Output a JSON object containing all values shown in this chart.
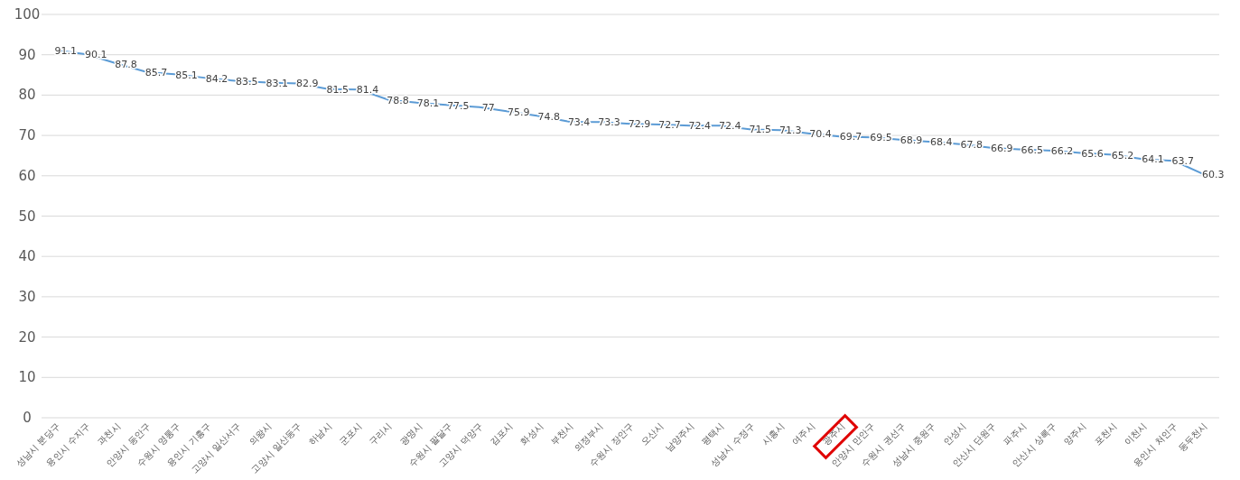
{
  "chart_data": {
    "type": "line",
    "categories": [
      "성남시 분당구",
      "용인시 수지구",
      "과천시",
      "안양시 동안구",
      "수원시 영통구",
      "용인시 기흥구",
      "고양시 일산서구",
      "의왕시",
      "고양시 일산동구",
      "하남시",
      "군포시",
      "구리시",
      "광명시",
      "수원시 팔달구",
      "고양시 덕양구",
      "김포시",
      "화성시",
      "부천시",
      "의정부시",
      "수원시 장안구",
      "오산시",
      "남양주시",
      "평택시",
      "성남시 수정구",
      "시흥시",
      "여주시",
      "광주시",
      "안양시 만안구",
      "수원시 권선구",
      "성남시 중원구",
      "안성시",
      "안산시 단원구",
      "파주시",
      "안산시 상록구",
      "양주시",
      "포천시",
      "이천시",
      "용인시 처인구",
      "동두천시"
    ],
    "values": [
      91.1,
      90.1,
      87.8,
      85.7,
      85.1,
      84.2,
      83.5,
      83.1,
      82.9,
      81.5,
      81.4,
      78.8,
      78.1,
      77.5,
      77,
      75.9,
      74.8,
      73.4,
      73.3,
      72.9,
      72.7,
      72.4,
      72.4,
      71.5,
      71.3,
      70.4,
      69.7,
      69.5,
      68.9,
      68.4,
      67.8,
      66.9,
      66.5,
      66.2,
      65.6,
      65.2,
      64.1,
      63.7,
      60.3
    ],
    "color": "#5b9bd5",
    "ylim": [
      0,
      100
    ],
    "yticks": [
      0,
      10,
      20,
      30,
      40,
      50,
      60,
      70,
      80,
      90,
      100
    ],
    "grid": "y",
    "data_labels": true,
    "marker": "none",
    "line_style": "solid"
  }
}
